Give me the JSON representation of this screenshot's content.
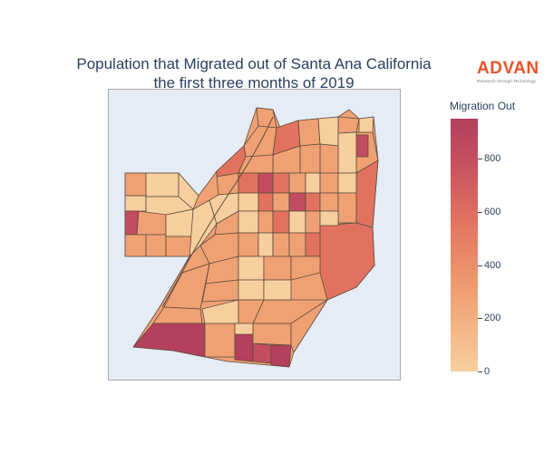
{
  "title": {
    "line1": "Population that Migrated out of Santa Ana California",
    "line2": "the first three months of 2019"
  },
  "logo": {
    "word": "ADVAN",
    "tagline": "Research through Technology",
    "color": "#e8532b"
  },
  "map": {
    "background": "#e5ecf6",
    "border_color": "#5c4a3b",
    "colorscale": [
      "#f7cf9f",
      "#f0a174",
      "#e2725f",
      "#c34c5f",
      "#b4405d"
    ],
    "value_range": [
      0,
      950
    ]
  },
  "colorbar": {
    "title": "Migration Out",
    "ticks": [
      "800",
      "600",
      "400",
      "200",
      "0"
    ],
    "tick_values": [
      800,
      600,
      400,
      200,
      0
    ]
  }
}
